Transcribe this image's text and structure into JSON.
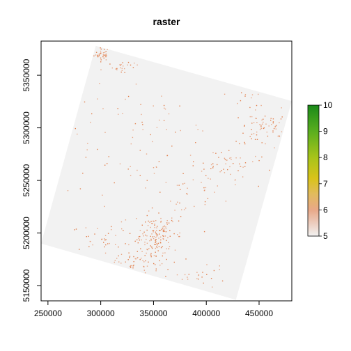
{
  "chart_data": {
    "type": "heatmap",
    "title": "raster",
    "xlabel": "",
    "ylabel": "",
    "xlim": [
      243500,
      481000
    ],
    "ylim": [
      5135500,
      5382500
    ],
    "x_ticks": [
      250000,
      300000,
      350000,
      400000,
      450000
    ],
    "x_tick_labels": [
      "250000",
      "300000",
      "350000",
      "400000",
      "450000"
    ],
    "y_ticks": [
      5150000,
      5200000,
      5250000,
      5300000,
      5350000
    ],
    "y_tick_labels": [
      "5150000",
      "5200000",
      "5250000",
      "5300000",
      "5350000"
    ],
    "raster_footprint": [
      [
        295300,
        5378000
      ],
      [
        481000,
        5325500
      ],
      [
        428000,
        5136500
      ],
      [
        243500,
        5190000
      ]
    ],
    "background_value": 5,
    "cell_colors": {
      "5": "#f2f2f2",
      "6": "#e8a888",
      "present": "#e1814f"
    },
    "clusters": [
      {
        "x": 301000,
        "y": 5370000,
        "spread": [
          6000,
          5000
        ],
        "count": 35
      },
      {
        "x": 320000,
        "y": 5358000,
        "spread": [
          13000,
          4000
        ],
        "count": 22
      },
      {
        "x": 455000,
        "y": 5300000,
        "spread": [
          18000,
          15000
        ],
        "count": 70
      },
      {
        "x": 420000,
        "y": 5262000,
        "spread": [
          24000,
          14000
        ],
        "count": 55
      },
      {
        "x": 385000,
        "y": 5235000,
        "spread": [
          25000,
          15000
        ],
        "count": 30
      },
      {
        "x": 352000,
        "y": 5198000,
        "spread": [
          18000,
          15000
        ],
        "count": 140
      },
      {
        "x": 340000,
        "y": 5170000,
        "spread": [
          26000,
          14000
        ],
        "count": 90
      },
      {
        "x": 298000,
        "y": 5193000,
        "spread": [
          18000,
          9000
        ],
        "count": 30
      },
      {
        "x": 395000,
        "y": 5160000,
        "spread": [
          18000,
          10000
        ],
        "count": 20
      },
      {
        "x": 340000,
        "y": 5290000,
        "spread": [
          70000,
          50000
        ],
        "count": 90
      },
      {
        "x": 440000,
        "y": 5330000,
        "spread": [
          12000,
          6000
        ],
        "count": 8
      }
    ],
    "legend": {
      "min": 5,
      "max": 10,
      "ticks": [
        5,
        6,
        7,
        8,
        9,
        10
      ],
      "tick_labels": [
        "5",
        "6",
        "7",
        "8",
        "9",
        "10"
      ],
      "color_stops": [
        {
          "value": 5.0,
          "color": "#f2f2f2"
        },
        {
          "value": 5.5,
          "color": "#ecccbd"
        },
        {
          "value": 6.0,
          "color": "#e8a888"
        },
        {
          "value": 6.6,
          "color": "#e2bb5e"
        },
        {
          "value": 7.2,
          "color": "#d9c31a"
        },
        {
          "value": 8.0,
          "color": "#a8c41a"
        },
        {
          "value": 9.0,
          "color": "#5aae1f"
        },
        {
          "value": 10.0,
          "color": "#1a8a1a"
        }
      ]
    }
  }
}
